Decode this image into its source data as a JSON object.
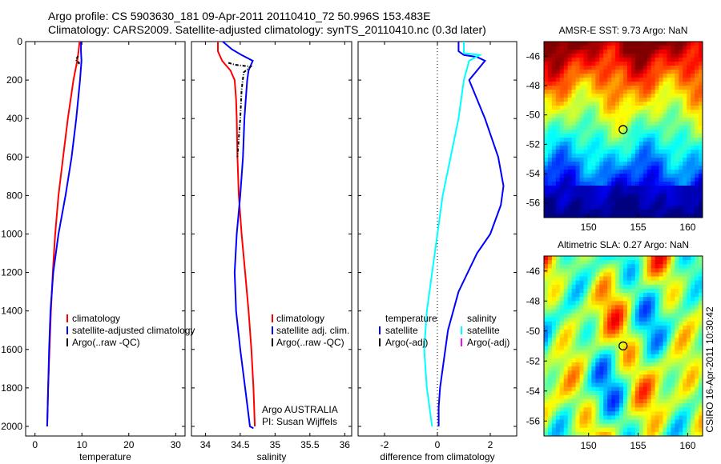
{
  "header": {
    "line1": "Argo profile: CS 5903630_181 09-Apr-2011 20110410_72 50.996S 153.483E",
    "line2": "Climatology: CARS2009. Satellite-adjusted climatology: synTS_20110410.nc (0.3d later)"
  },
  "side_stamp": "CSIRO 16-Apr-2011 10:30:42",
  "colors": {
    "red": "#ff0000",
    "blue": "#0000ff",
    "cyan": "#00ffff",
    "magenta": "#ff00ff",
    "black": "#000000"
  },
  "chart_data": [
    {
      "id": "temperature",
      "type": "line",
      "xlabel": "temperature",
      "xlim": [
        -2,
        32
      ],
      "ylim": [
        2050,
        0
      ],
      "xticks": [
        0,
        10,
        20,
        30
      ],
      "yticks": [
        0,
        200,
        400,
        600,
        800,
        1000,
        1200,
        1400,
        1600,
        1800,
        2000
      ],
      "legend": {
        "position": "lower-left",
        "entries": [
          "climatology",
          "satellite-adjusted climatology",
          "Argo(..raw -QC)"
        ]
      },
      "series": [
        {
          "name": "climatology",
          "color": "#ff0000",
          "x": [
            9.5,
            9.3,
            9.0,
            8.2,
            7.0,
            6.0,
            5.0,
            4.3,
            3.8,
            3.4,
            3.1,
            2.8,
            2.6
          ],
          "y": [
            0,
            50,
            100,
            200,
            400,
            600,
            800,
            1000,
            1200,
            1400,
            1600,
            1800,
            2000
          ]
        },
        {
          "name": "satellite-adjusted climatology",
          "color": "#0000ff",
          "x": [
            9.8,
            9.8,
            9.9,
            9.6,
            8.8,
            7.8,
            6.5,
            5.0,
            3.9,
            3.3,
            3.0,
            2.8,
            2.6
          ],
          "y": [
            0,
            50,
            100,
            200,
            400,
            600,
            800,
            1000,
            1200,
            1400,
            1600,
            1800,
            2000
          ]
        },
        {
          "name": "Argo(..raw -QC)",
          "color": "#000000",
          "dash": "4 2 1 2",
          "x": [
            9.2,
            8.7,
            9.4,
            9.3,
            9.1
          ],
          "y": [
            75,
            95,
            110,
            120,
            125
          ]
        }
      ]
    },
    {
      "id": "salinity",
      "type": "line",
      "xlabel": "salinity",
      "xlim": [
        33.8,
        36.1
      ],
      "ylim": [
        2050,
        0
      ],
      "xticks": [
        34,
        34.5,
        35,
        35.5,
        36
      ],
      "yticks": [
        0,
        200,
        400,
        600,
        800,
        1000,
        1200,
        1400,
        1600,
        1800,
        2000
      ],
      "legend": {
        "position": "lower-right",
        "entries": [
          "climatology",
          "satellite adj. clim.",
          "Argo(..raw -QC)"
        ]
      },
      "annotation": {
        "line1": "Argo AUSTRALIA",
        "line2": "PI: Susan Wijffels"
      },
      "series": [
        {
          "name": "climatology",
          "color": "#ff0000",
          "x": [
            34.18,
            34.18,
            34.24,
            34.36,
            34.42,
            34.44,
            34.45,
            34.46,
            34.48,
            34.52,
            34.57,
            34.62,
            34.66,
            34.69,
            34.71
          ],
          "y": [
            0,
            50,
            100,
            150,
            200,
            300,
            400,
            600,
            800,
            1000,
            1200,
            1400,
            1600,
            1800,
            2000
          ]
        },
        {
          "name": "satellite adj. clim.",
          "color": "#0000ff",
          "x": [
            34.25,
            34.38,
            34.52,
            34.68,
            34.62,
            34.6,
            34.58,
            34.56,
            34.54,
            34.5,
            34.45,
            34.42,
            34.44,
            34.5,
            34.57,
            34.64,
            34.69
          ],
          "y": [
            0,
            40,
            70,
            100,
            150,
            200,
            300,
            400,
            600,
            800,
            1000,
            1200,
            1400,
            1600,
            1800,
            2000,
            2010
          ]
        },
        {
          "name": "Argo(..raw -QC)",
          "color": "#000000",
          "dash": "4 2 1 2",
          "x": [
            34.33,
            34.42,
            34.65,
            34.55,
            34.52,
            34.5,
            34.48,
            34.46
          ],
          "y": [
            110,
            120,
            130,
            160,
            250,
            400,
            500,
            600
          ]
        }
      ]
    },
    {
      "id": "difference",
      "type": "line",
      "xlabel": "difference from climatology",
      "xlim": [
        -3,
        3
      ],
      "ylim": [
        2050,
        0
      ],
      "xticks": [
        -2,
        0,
        2
      ],
      "yticks": [
        0,
        200,
        400,
        600,
        800,
        1000,
        1200,
        1400,
        1600,
        1800,
        2000
      ],
      "legend": {
        "position": "lower-center",
        "col1": {
          "title": "temperature",
          "entries": [
            "satellite",
            "Argo(-adj)"
          ]
        },
        "col2": {
          "title": "salinity",
          "entries": [
            "satellite",
            "Argo(-adj)"
          ]
        }
      },
      "series": [
        {
          "name": "temperature satellite",
          "color": "#0000ff",
          "x": [
            0.8,
            0.8,
            1.0,
            1.5,
            1.8,
            1.5,
            1.2,
            1.8,
            2.3,
            2.5,
            2.4,
            2.0,
            1.5,
            0.8,
            0.4,
            0.2,
            0.1,
            0.05,
            0.05
          ],
          "y": [
            0,
            50,
            70,
            80,
            100,
            150,
            200,
            400,
            600,
            750,
            850,
            1000,
            1100,
            1300,
            1500,
            1700,
            1800,
            1900,
            2000
          ]
        },
        {
          "name": "salinity satellite",
          "color": "#00ffff",
          "x": [
            1.0,
            1.0,
            1.6,
            1.2,
            1.0,
            0.8,
            0.5,
            0.2,
            0.0,
            -0.2,
            -0.4,
            -0.5,
            -0.4,
            -0.3,
            -0.2
          ],
          "y": [
            0,
            60,
            70,
            100,
            200,
            400,
            600,
            800,
            1000,
            1200,
            1400,
            1600,
            1800,
            1900,
            2000
          ]
        }
      ]
    },
    {
      "id": "sst-map",
      "type": "heatmap",
      "title": "AMSR-E SST: 9.73 Argo: NaN",
      "xlim": [
        145.5,
        161.5
      ],
      "ylim": [
        -57,
        -45
      ],
      "xticks": [
        150,
        155,
        160
      ],
      "yticks": [
        -46,
        -48,
        -50,
        -52,
        -54,
        -56
      ],
      "marker": {
        "lon": 153.483,
        "lat": -50.996
      }
    },
    {
      "id": "sla-map",
      "type": "heatmap",
      "title": "Altimetric SLA: 0.27 Argo: NaN",
      "xlim": [
        145.5,
        161.5
      ],
      "ylim": [
        -57,
        -45
      ],
      "xticks": [
        150,
        155,
        160
      ],
      "yticks": [
        -46,
        -48,
        -50,
        -52,
        -54,
        -56
      ],
      "marker": {
        "lon": 153.483,
        "lat": -50.996
      }
    }
  ]
}
